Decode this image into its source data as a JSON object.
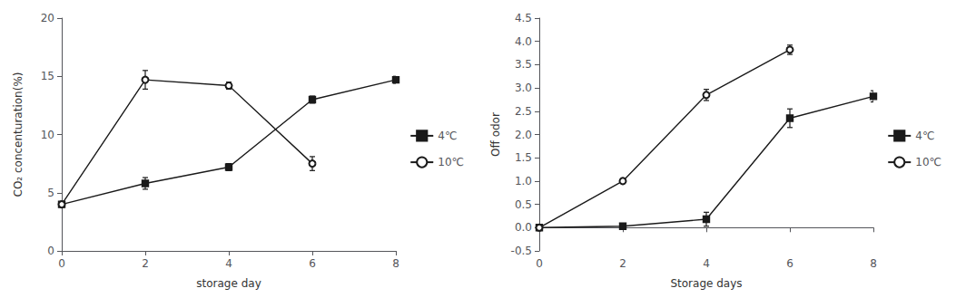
{
  "chart_data": [
    {
      "type": "line",
      "x_label": "storage day",
      "y_label": "CO₂ concenturation(%)",
      "x": [
        0,
        2,
        4,
        6,
        8
      ],
      "xlim": [
        0,
        8
      ],
      "xticks": [
        0,
        2,
        4,
        6,
        8
      ],
      "ylim": [
        0,
        20
      ],
      "yticks": [
        0,
        5,
        10,
        15,
        20
      ],
      "grid": false,
      "legend": "right",
      "series": [
        {
          "name": "4℃",
          "color": "#1a1a1a",
          "marker": "square",
          "values": [
            4.0,
            5.8,
            7.2,
            13.0,
            14.7
          ],
          "errors": [
            0.2,
            0.5,
            0.3,
            0.3,
            0.3
          ]
        },
        {
          "name": "10℃",
          "color": "#1a1a1a",
          "marker": "emptyCircle",
          "values": [
            4.0,
            14.7,
            14.2,
            7.5,
            null
          ],
          "errors": [
            0.2,
            0.8,
            0.3,
            0.6,
            null
          ]
        }
      ]
    },
    {
      "type": "line",
      "x_label": "Storage days",
      "y_label": "Off odor",
      "x": [
        0,
        2,
        4,
        6,
        8
      ],
      "xlim": [
        0,
        8
      ],
      "xticks": [
        0,
        2,
        4,
        6,
        8
      ],
      "ylim": [
        -0.5,
        4.5
      ],
      "yticks": [
        -0.5,
        {
          "value": 0,
          "label": "0.0"
        },
        0.5,
        {
          "value": 1,
          "label": "1.0"
        },
        1.5,
        {
          "value": 2,
          "label": "2.0"
        },
        2.5,
        {
          "value": 3,
          "label": "3.0"
        },
        3.5,
        {
          "value": 4,
          "label": "4.0"
        },
        4.5
      ],
      "grid": false,
      "legend": "right",
      "series": [
        {
          "name": "4℃",
          "color": "#1a1a1a",
          "marker": "square",
          "values": [
            0.0,
            0.03,
            0.18,
            2.35,
            2.82
          ],
          "errors": [
            0.02,
            0.03,
            0.15,
            0.2,
            0.12
          ]
        },
        {
          "name": "10℃",
          "color": "#1a1a1a",
          "marker": "emptyCircle",
          "values": [
            0.0,
            1.0,
            2.85,
            3.82,
            null
          ],
          "errors": [
            0.02,
            0.05,
            0.12,
            0.1,
            null
          ]
        }
      ]
    }
  ]
}
